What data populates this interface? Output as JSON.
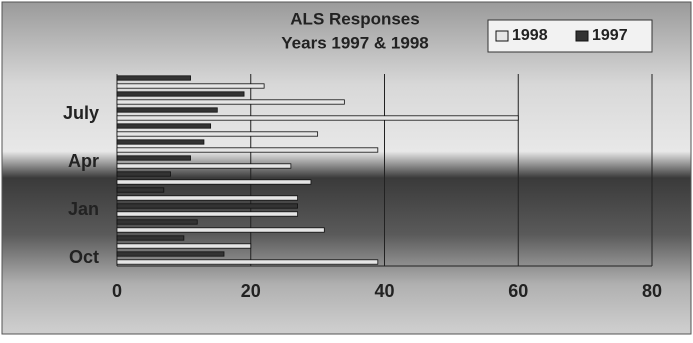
{
  "chart_data": {
    "type": "bar",
    "orientation": "horizontal",
    "title": "ALS Responses",
    "subtitle": "Years 1997 & 1998",
    "categories": [
      "Oct",
      null,
      null,
      "Jan",
      null,
      null,
      "Apr",
      null,
      null,
      "July",
      null,
      null
    ],
    "series": [
      {
        "name": "1998",
        "color": "#e6e6e6",
        "values": [
          39,
          20,
          31,
          27,
          27,
          29,
          26,
          39,
          30,
          60,
          34,
          22
        ]
      },
      {
        "name": "1997",
        "color": "#333333",
        "values": [
          16,
          10,
          12,
          27,
          7,
          8,
          11,
          13,
          14,
          15,
          19,
          11
        ]
      }
    ],
    "xlim": [
      0,
      80
    ],
    "xticks": [
      0,
      20,
      40,
      60,
      80
    ],
    "grid": true,
    "legend": "top-right"
  }
}
